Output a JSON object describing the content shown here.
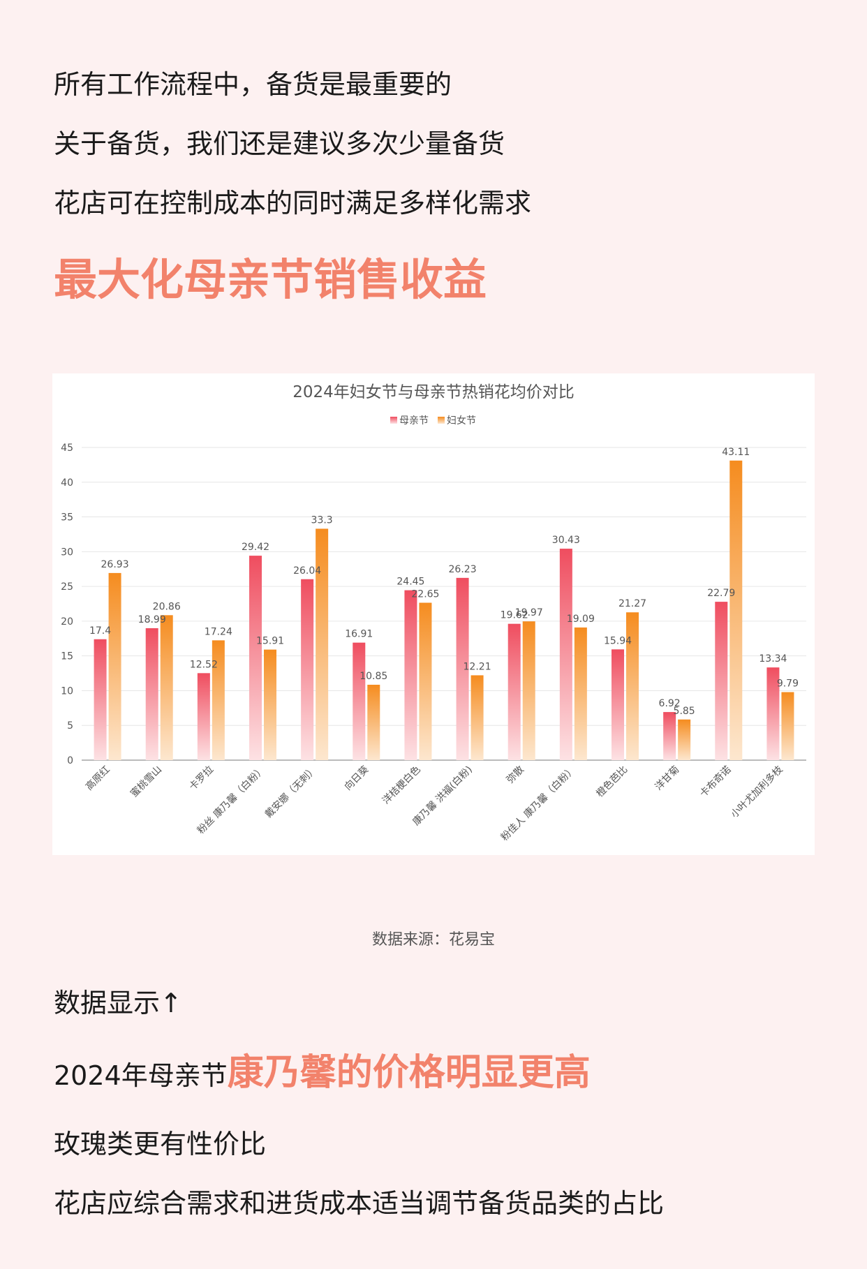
{
  "intro": {
    "line1": "所有工作流程中，备货是最重要的",
    "line2": "关于备货，我们还是建议多次少量备货",
    "line3": "花店可在控制成本的同时满足多样化需求",
    "headline": "最大化母亲节销售收益"
  },
  "chart_data": {
    "type": "bar",
    "title": "2024年妇女节与母亲节热销花均价对比",
    "categories": [
      "高原红",
      "蜜桃雪山",
      "卡罗拉",
      "粉丝 康乃馨（白粉）",
      "戴安娜（无刺）",
      "向日葵",
      "洋桔梗白色",
      "康乃馨 洪福(白粉)",
      "弥散",
      "粉佳人 康乃馨（白粉）",
      "橙色芭比",
      "洋甘菊",
      "卡布奇诺",
      "小叶尤加利多枝"
    ],
    "series": [
      {
        "name": "母亲节",
        "values": [
          17.4,
          18.99,
          12.52,
          29.42,
          26.04,
          16.91,
          24.45,
          26.23,
          19.62,
          30.43,
          15.94,
          6.92,
          22.79,
          13.34
        ]
      },
      {
        "name": "妇女节",
        "values": [
          26.93,
          20.86,
          17.24,
          15.91,
          33.3,
          10.85,
          22.65,
          12.21,
          19.97,
          19.09,
          21.27,
          5.85,
          43.11,
          9.79
        ]
      }
    ],
    "ylim": [
      0,
      45
    ],
    "yticks": [
      0,
      5,
      10,
      15,
      20,
      25,
      30,
      35,
      40,
      45
    ],
    "grid": true,
    "legend": "top-center",
    "colors": {
      "母亲节": "#ef5a6a",
      "妇女节": "#f59a2a"
    }
  },
  "source_note": "数据来源：花易宝",
  "conclusion": {
    "line1": "数据显示↑",
    "line2_prefix": "2024年母亲节",
    "line2_highlight": "康乃馨的价格明显更高",
    "line3": "玫瑰类更有性价比",
    "line4": "花店应综合需求和进货成本适当调节备货品类的占比"
  }
}
